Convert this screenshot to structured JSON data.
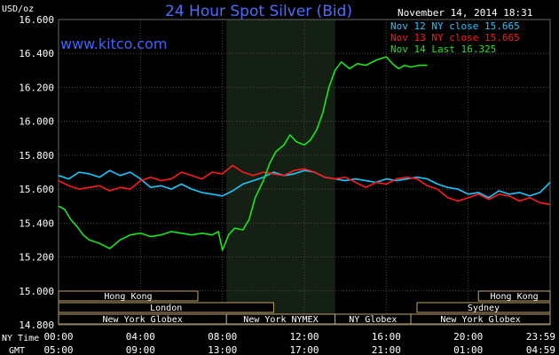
{
  "header": {
    "currency_label": "USD/oz",
    "title": "24 Hour Spot Silver (Bid)",
    "brand": "www.kitco.com",
    "date": "November 14, 2014 18:31"
  },
  "colors": {
    "background": "#000000",
    "title": "#4a6cff",
    "nov12": "#19c8ff",
    "nov13": "#ff1a1a",
    "nov14": "#19e619",
    "grid": "#555555",
    "session_box": "#bfa46a"
  },
  "legend": [
    {
      "text": "Nov 12 NY close 15.665",
      "color": "#19c8ff"
    },
    {
      "text": "Nov 13 NY close 15.665",
      "color": "#ff1a1a"
    },
    {
      "text": "Nov 14 Last 16.325",
      "color": "#19e619"
    }
  ],
  "time_rows": {
    "ny_label": "NY Time",
    "gmt_label": "GMT",
    "ny_ticks": [
      "00:00",
      "04:00",
      "08:00",
      "12:00",
      "16:00",
      "20:00",
      "23:59"
    ],
    "gmt_ticks": [
      "05:00",
      "09:00",
      "13:00",
      "17:00",
      "21:00",
      "01:00",
      "04:59"
    ]
  },
  "sessions": [
    {
      "label": "Hong Kong",
      "start": 0,
      "end": 6.8,
      "row": 0
    },
    {
      "label": "Hong Kong",
      "start": 20.5,
      "end": 24,
      "row": 0
    },
    {
      "label": "London",
      "start": 0,
      "end": 10.5,
      "row": 1
    },
    {
      "label": "Sydney",
      "start": 17.5,
      "end": 24,
      "row": 1
    },
    {
      "label": "New York Globex",
      "start": 0,
      "end": 8.2,
      "row": 2
    },
    {
      "label": "New York NYMEX",
      "start": 8.2,
      "end": 13.5,
      "row": 2
    },
    {
      "label": "NY Globex",
      "start": 13.5,
      "end": 17.2,
      "row": 2
    },
    {
      "label": "New York Globex",
      "start": 17.2,
      "end": 24,
      "row": 2
    }
  ],
  "chart_data": {
    "type": "line",
    "title": "24 Hour Spot Silver (Bid)",
    "ylabel": "USD/oz",
    "xlabel": "",
    "xlim": [
      0,
      24
    ],
    "ylim": [
      14.8,
      16.6
    ],
    "y_ticks": [
      "16.600",
      "16.400",
      "16.200",
      "16.000",
      "15.800",
      "15.600",
      "15.400",
      "15.200",
      "15.000",
      "14.800"
    ],
    "highlight_hours": [
      8.2,
      13.5
    ],
    "grid": true,
    "legend_position": "top-right",
    "series": [
      {
        "name": "Nov 12 NY close 15.665",
        "color": "#19c8ff",
        "x": [
          0,
          0.5,
          1,
          1.5,
          2,
          2.5,
          3,
          3.5,
          4,
          4.5,
          5,
          5.5,
          6,
          6.5,
          7,
          7.5,
          8,
          8.5,
          9,
          9.5,
          10,
          10.5,
          11,
          11.5,
          12,
          12.5,
          13,
          13.5,
          14,
          14.5,
          15,
          15.5,
          16,
          16.5,
          17,
          17.5,
          18,
          18.5,
          19,
          19.5,
          20,
          20.5,
          21,
          21.5,
          22,
          22.5,
          23,
          23.5,
          24
        ],
        "values": [
          15.68,
          15.66,
          15.7,
          15.69,
          15.67,
          15.71,
          15.68,
          15.7,
          15.66,
          15.61,
          15.62,
          15.6,
          15.63,
          15.6,
          15.58,
          15.57,
          15.56,
          15.59,
          15.63,
          15.65,
          15.67,
          15.7,
          15.68,
          15.69,
          15.71,
          15.7,
          15.67,
          15.66,
          15.65,
          15.66,
          15.65,
          15.64,
          15.66,
          15.65,
          15.66,
          15.67,
          15.66,
          15.63,
          15.61,
          15.6,
          15.57,
          15.58,
          15.55,
          15.59,
          15.57,
          15.58,
          15.56,
          15.58,
          15.64
        ]
      },
      {
        "name": "Nov 13 NY close 15.665",
        "color": "#ff1a1a",
        "x": [
          0,
          0.5,
          1,
          1.5,
          2,
          2.5,
          3,
          3.5,
          4,
          4.5,
          5,
          5.5,
          6,
          6.5,
          7,
          7.5,
          8,
          8.5,
          9,
          9.5,
          10,
          10.5,
          11,
          11.5,
          12,
          12.5,
          13,
          13.5,
          14,
          14.5,
          15,
          15.5,
          16,
          16.5,
          17,
          17.5,
          18,
          18.5,
          19,
          19.5,
          20,
          20.5,
          21,
          21.5,
          22,
          22.5,
          23,
          23.5,
          24
        ],
        "values": [
          15.65,
          15.62,
          15.6,
          15.61,
          15.62,
          15.59,
          15.61,
          15.6,
          15.65,
          15.67,
          15.65,
          15.66,
          15.7,
          15.68,
          15.66,
          15.7,
          15.69,
          15.74,
          15.7,
          15.68,
          15.7,
          15.69,
          15.68,
          15.71,
          15.72,
          15.7,
          15.67,
          15.66,
          15.67,
          15.64,
          15.61,
          15.64,
          15.63,
          15.66,
          15.67,
          15.66,
          15.62,
          15.6,
          15.55,
          15.53,
          15.55,
          15.57,
          15.54,
          15.57,
          15.56,
          15.53,
          15.55,
          15.52,
          15.51
        ]
      },
      {
        "name": "Nov 14 Last 16.325",
        "color": "#19e619",
        "x": [
          0,
          0.3,
          0.6,
          0.9,
          1.2,
          1.5,
          2,
          2.5,
          3,
          3.5,
          4,
          4.5,
          5,
          5.5,
          6,
          6.5,
          7,
          7.5,
          7.8,
          8,
          8.3,
          8.6,
          9,
          9.3,
          9.6,
          10,
          10.3,
          10.6,
          11,
          11.3,
          11.6,
          12,
          12.3,
          12.6,
          12.9,
          13.2,
          13.5,
          13.8,
          14.2,
          14.6,
          15,
          15.5,
          16,
          16.3,
          16.6,
          16.9,
          17.2,
          17.6,
          18
        ],
        "values": [
          15.5,
          15.48,
          15.42,
          15.38,
          15.33,
          15.3,
          15.28,
          15.25,
          15.3,
          15.33,
          15.34,
          15.32,
          15.33,
          15.35,
          15.34,
          15.33,
          15.34,
          15.33,
          15.35,
          15.24,
          15.33,
          15.37,
          15.36,
          15.42,
          15.55,
          15.65,
          15.75,
          15.82,
          15.86,
          15.92,
          15.88,
          15.86,
          15.89,
          15.95,
          16.05,
          16.2,
          16.3,
          16.35,
          16.31,
          16.34,
          16.33,
          16.36,
          16.38,
          16.34,
          16.31,
          16.33,
          16.32,
          16.33,
          16.33
        ]
      }
    ]
  }
}
